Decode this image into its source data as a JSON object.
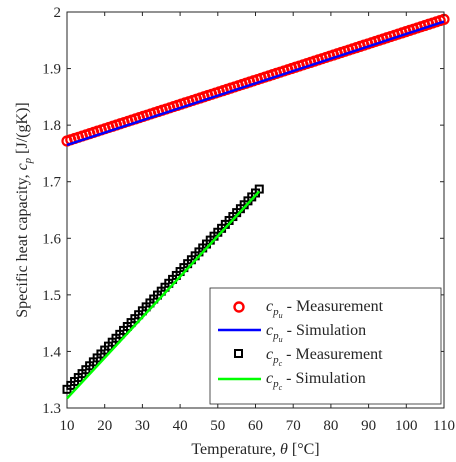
{
  "chart_data": {
    "type": "scatter",
    "xlabel": "Temperature, θ [°C]",
    "ylabel": "Specific heat capacity, c_p [J/(gK)]",
    "xlim": [
      10,
      110
    ],
    "ylim": [
      1.3,
      2.0
    ],
    "xticks": [
      "10",
      "20",
      "30",
      "40",
      "50",
      "60",
      "70",
      "80",
      "90",
      "100",
      "110"
    ],
    "yticks": [
      "1.3",
      "1.4",
      "1.5",
      "1.6",
      "1.7",
      "1.8",
      "1.9",
      "2"
    ],
    "grid": false,
    "legend_position": "bottom-right",
    "series": [
      {
        "name": "c_pu - Measurement",
        "kind": "markers",
        "marker": "circle",
        "color": "#ff0000",
        "x_start": 10,
        "x_end": 110,
        "y_start": 1.772,
        "y_end": 1.987,
        "point_count": 100
      },
      {
        "name": "c_pu - Simulation",
        "kind": "line",
        "color": "#0000ff",
        "x": [
          10,
          110
        ],
        "y": [
          1.765,
          1.983
        ]
      },
      {
        "name": "c_pc - Measurement",
        "kind": "markers",
        "marker": "square",
        "color": "#000000",
        "x_start": 10,
        "x_end": 61,
        "y_start": 1.333,
        "y_end": 1.687,
        "point_count": 52
      },
      {
        "name": "c_pc - Simulation",
        "kind": "line",
        "color": "#00ff00",
        "x": [
          10,
          61
        ],
        "y": [
          1.317,
          1.683
        ]
      }
    ]
  },
  "legend": {
    "entries": [
      {
        "sym": "c",
        "sub": "p",
        "subsub": "u",
        "label": " - Measurement"
      },
      {
        "sym": "c",
        "sub": "p",
        "subsub": "u",
        "label": " - Simulation"
      },
      {
        "sym": "c",
        "sub": "p",
        "subsub": "c",
        "label": " - Measurement"
      },
      {
        "sym": "c",
        "sub": "p",
        "subsub": "c",
        "label": " - Simulation"
      }
    ]
  },
  "labels": {
    "xlabel_prefix": "Temperature, ",
    "xlabel_sym": "θ",
    "xlabel_unit": " [°C]",
    "ylabel_prefix": "Specific heat capacity, ",
    "ylabel_sym": "c",
    "ylabel_sub": "p",
    "ylabel_unit": "  [J/(gK)]"
  }
}
